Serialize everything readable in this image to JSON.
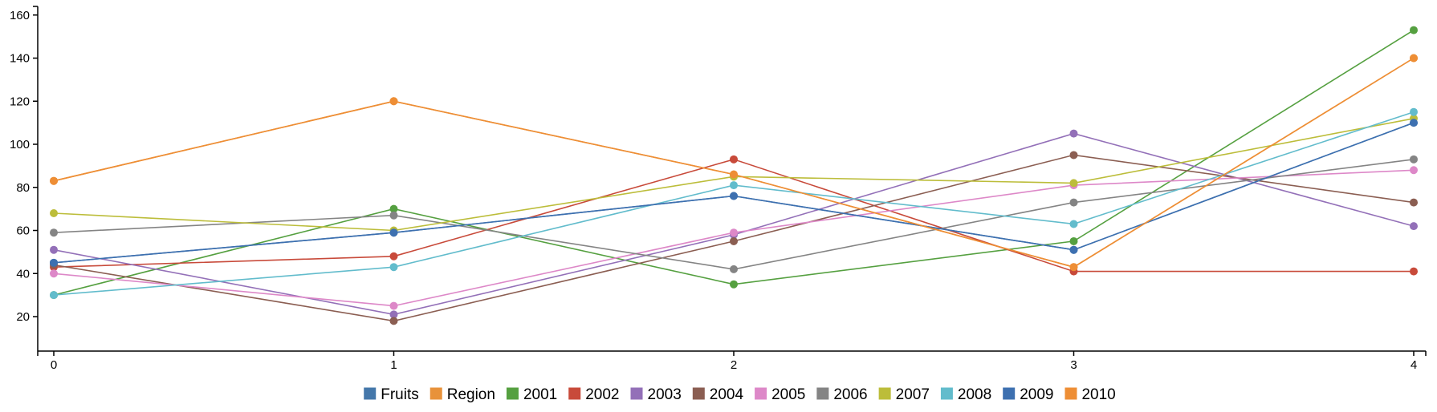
{
  "chart_data": {
    "type": "line",
    "title": "",
    "xlabel": "",
    "ylabel": "",
    "x": [
      0,
      1,
      2,
      3,
      4
    ],
    "x_ticks": [
      "0",
      "1",
      "2",
      "3",
      "4"
    ],
    "y_ticks": [
      "20",
      "40",
      "60",
      "80",
      "100",
      "120",
      "140",
      "160"
    ],
    "ylim": [
      4,
      164
    ],
    "xlim": [
      -0.04,
      4.04
    ],
    "grid": false,
    "legend_position": "bottom",
    "series": [
      {
        "name": "Fruits",
        "color": "#4477aa",
        "values": [
          45,
          59,
          76,
          51,
          110
        ]
      },
      {
        "name": "Region",
        "color": "#e8923a",
        "values": [
          83,
          120,
          86,
          43,
          140
        ]
      },
      {
        "name": "2001",
        "color": "#55a040",
        "values": [
          30,
          70,
          35,
          55,
          153
        ]
      },
      {
        "name": "2002",
        "color": "#c84a3a",
        "values": [
          43,
          48,
          93,
          41,
          41
        ]
      },
      {
        "name": "2003",
        "color": "#9370b8",
        "values": [
          51,
          21,
          58,
          105,
          62
        ]
      },
      {
        "name": "2004",
        "color": "#8b5e52",
        "values": [
          44,
          18,
          55,
          95,
          73
        ]
      },
      {
        "name": "2005",
        "color": "#dd88c8",
        "values": [
          40,
          25,
          59,
          81,
          88
        ]
      },
      {
        "name": "2006",
        "color": "#848484",
        "values": [
          59,
          67,
          42,
          73,
          93
        ]
      },
      {
        "name": "2007",
        "color": "#bcbd3a",
        "values": [
          68,
          60,
          85,
          82,
          112
        ]
      },
      {
        "name": "2008",
        "color": "#62bccc",
        "values": [
          30,
          43,
          81,
          63,
          115
        ]
      },
      {
        "name": "2009",
        "color": "#3d70b0",
        "values": [
          45,
          59,
          76,
          51,
          110
        ]
      },
      {
        "name": "2010",
        "color": "#ee8e35",
        "values": [
          83,
          120,
          86,
          43,
          140
        ]
      }
    ]
  }
}
